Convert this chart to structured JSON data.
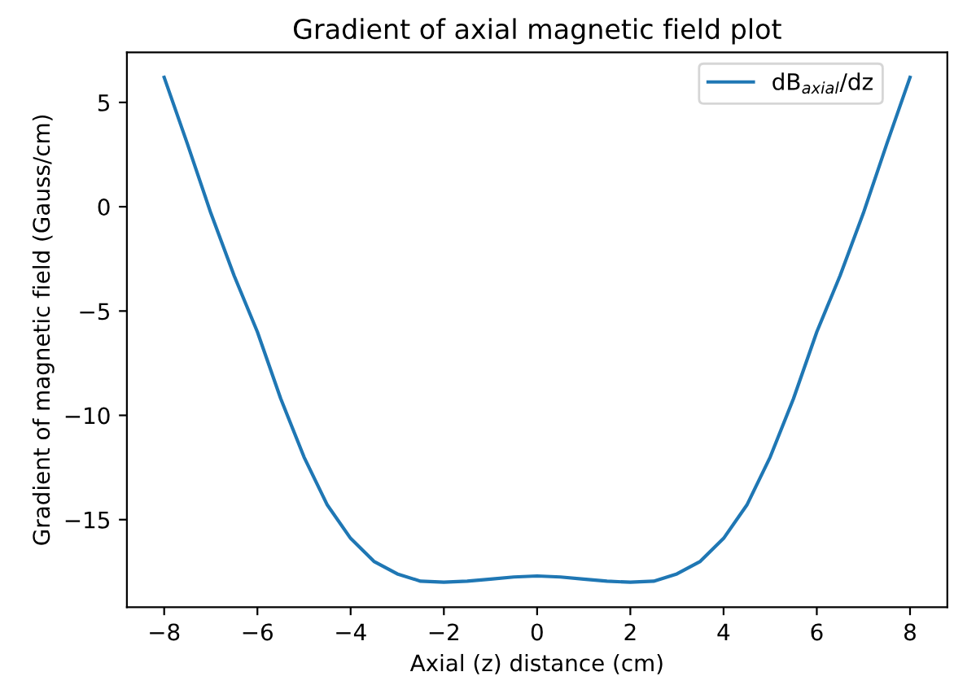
{
  "chart_data": {
    "type": "line",
    "title": "Gradient of axial magnetic field plot",
    "xlabel": "Axial (z) distance (cm)",
    "ylabel": "Gradient of magnetic field (Gauss/cm)",
    "x": [
      -8,
      -7.5,
      -7,
      -6.5,
      -6,
      -5.5,
      -5,
      -4.5,
      -4,
      -3.5,
      -3,
      -2.5,
      -2,
      -1.5,
      -1,
      -0.5,
      0,
      0.5,
      1,
      1.5,
      2,
      2.5,
      3,
      3.5,
      4,
      4.5,
      5,
      5.5,
      6,
      6.5,
      7,
      7.5,
      8
    ],
    "series": [
      {
        "name": "dB$_{axial}$/dz",
        "color": "#1f77b4",
        "values": [
          6.2,
          3.0,
          -0.3,
          -3.3,
          -6.0,
          -9.2,
          -12.0,
          -14.3,
          -15.9,
          -17.0,
          -17.6,
          -17.95,
          -18.0,
          -17.95,
          -17.85,
          -17.75,
          -17.7,
          -17.75,
          -17.85,
          -17.95,
          -18.0,
          -17.95,
          -17.6,
          -17.0,
          -15.9,
          -14.3,
          -12.0,
          -9.2,
          -6.0,
          -3.3,
          -0.3,
          3.0,
          6.2
        ]
      }
    ],
    "xlim": [
      -8.8,
      8.8
    ],
    "ylim": [
      -19.2,
      7.4
    ],
    "xticks": [
      -8,
      -6,
      -4,
      -2,
      0,
      2,
      4,
      6,
      8
    ],
    "yticks": [
      -15,
      -10,
      -5,
      0,
      5
    ],
    "grid": false,
    "legend": "top right",
    "marker": "none",
    "line_style": "solid"
  }
}
